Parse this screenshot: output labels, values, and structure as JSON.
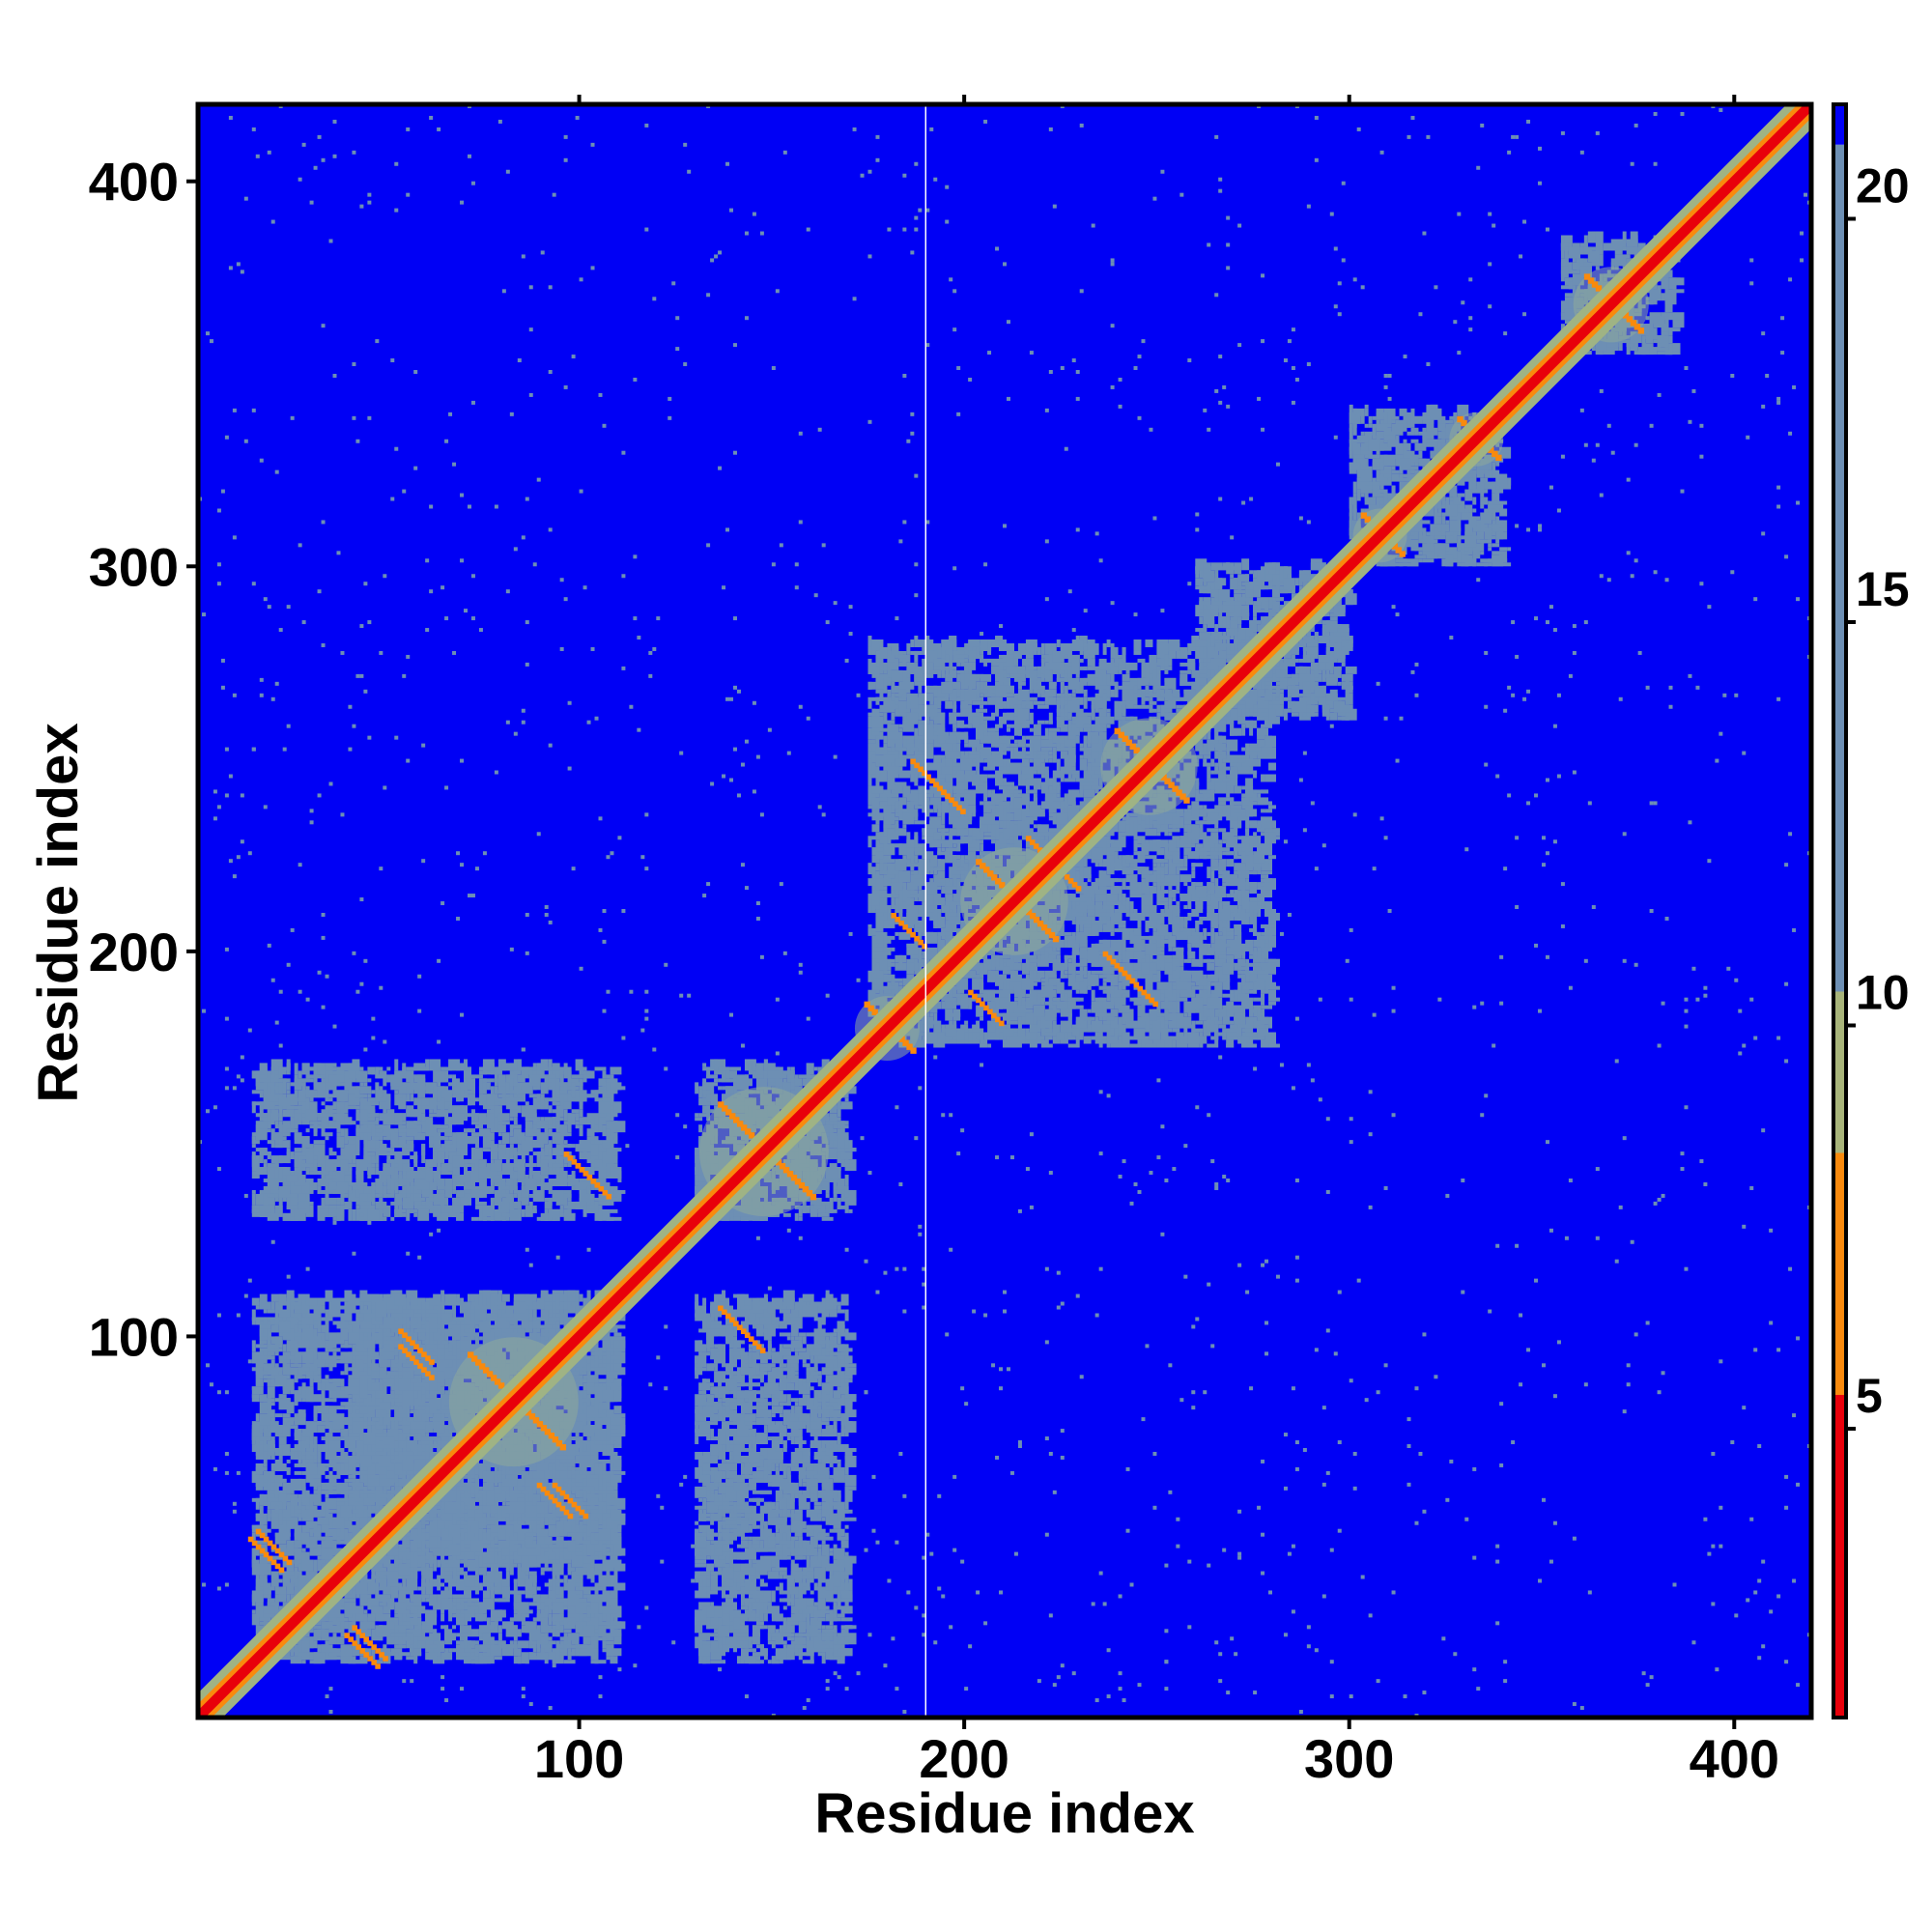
{
  "chart_data": {
    "type": "heatmap",
    "title": "",
    "xlabel": "Residue index",
    "ylabel": "Residue index",
    "xlim": [
      1,
      420
    ],
    "ylim": [
      1,
      420
    ],
    "x_ticks": [
      100,
      200,
      300,
      400
    ],
    "y_ticks": [
      100,
      200,
      300,
      400
    ],
    "colorbar": {
      "range": [
        1,
        21
      ],
      "ticks": [
        5,
        10,
        15,
        20
      ],
      "colors": [
        {
          "from": 1,
          "to": 5,
          "color": "#e8000b"
        },
        {
          "from": 5,
          "to": 8,
          "color": "#f98a0d"
        },
        {
          "from": 8,
          "to": 10,
          "color": "#a8b47a"
        },
        {
          "from": 10,
          "to": 20.5,
          "color": "#6d8fb4"
        },
        {
          "from": 20.5,
          "to": 21,
          "color": "#0000f5"
        }
      ]
    },
    "background_color": "#0000f5",
    "diagonal_color": "#e8000b",
    "near_diagonal_color": "#f98a0d",
    "contact_color": "#6d8fb4",
    "gap_line_at_residue": 190,
    "helix_crossings": [
      {
        "center": [
          83,
          83
        ],
        "halfwidth": 12
      },
      {
        "center": [
          148,
          148
        ],
        "halfwidth": 12
      },
      {
        "center": [
          213,
          213
        ],
        "halfwidth": 10
      },
      {
        "center": [
          248,
          248
        ],
        "halfwidth": 9
      },
      {
        "center": [
          180,
          180
        ],
        "halfwidth": 6
      },
      {
        "center": [
          368,
          368
        ],
        "halfwidth": 7
      },
      {
        "center": [
          333,
          333
        ],
        "halfwidth": 5
      },
      {
        "center": [
          308,
          308
        ],
        "halfwidth": 5
      }
    ],
    "off_diagonal_contacts": [
      {
        "x": 57,
        "y": 93
      },
      {
        "x": 93,
        "y": 57
      },
      {
        "x": 97,
        "y": 57
      },
      {
        "x": 57,
        "y": 97
      },
      {
        "x": 103,
        "y": 140
      },
      {
        "x": 140,
        "y": 103
      },
      {
        "x": 143,
        "y": 100
      },
      {
        "x": 100,
        "y": 143
      },
      {
        "x": 20,
        "y": 45
      },
      {
        "x": 45,
        "y": 20
      },
      {
        "x": 43,
        "y": 18
      },
      {
        "x": 18,
        "y": 43
      },
      {
        "x": 195,
        "y": 240
      },
      {
        "x": 240,
        "y": 195
      },
      {
        "x": 205,
        "y": 185
      },
      {
        "x": 185,
        "y": 205
      },
      {
        "x": 225,
        "y": 220
      },
      {
        "x": 220,
        "y": 225
      },
      {
        "x": 245,
        "y": 190
      },
      {
        "x": 190,
        "y": 245
      }
    ],
    "contact_regions": [
      {
        "x": [
          40,
          110
        ],
        "y": [
          40,
          110
        ]
      },
      {
        "x": [
          130,
          170
        ],
        "y": [
          130,
          170
        ]
      },
      {
        "x": [
          175,
          280
        ],
        "y": [
          175,
          280
        ]
      },
      {
        "x": [
          130,
          170
        ],
        "y": [
          15,
          110
        ]
      },
      {
        "x": [
          15,
          110
        ],
        "y": [
          130,
          170
        ]
      },
      {
        "x": [
          15,
          110
        ],
        "y": [
          15,
          110
        ]
      },
      {
        "x": [
          355,
          385
        ],
        "y": [
          355,
          385
        ]
      },
      {
        "x": [
          300,
          340
        ],
        "y": [
          300,
          340
        ]
      },
      {
        "x": [
          260,
          300
        ],
        "y": [
          260,
          300
        ]
      }
    ]
  }
}
